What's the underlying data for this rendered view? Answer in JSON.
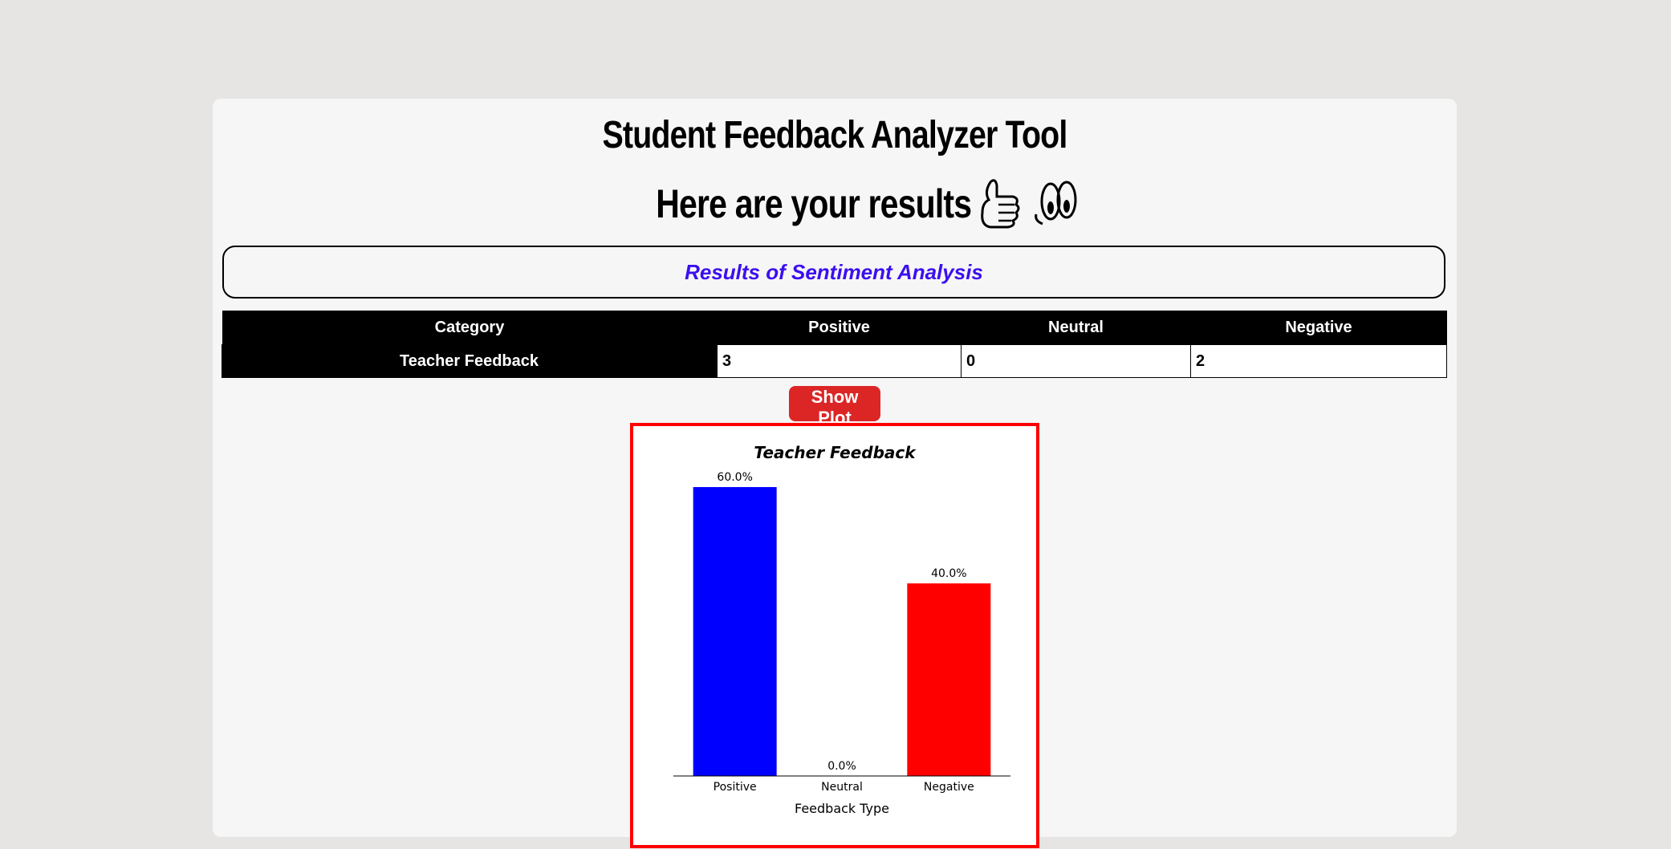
{
  "page": {
    "title": "Student Feedback Analyzer Tool",
    "subtitle": "Here are your results"
  },
  "results_heading": "Results of Sentiment Analysis",
  "table": {
    "headers": [
      "Category",
      "Positive",
      "Neutral",
      "Negative"
    ],
    "rows": [
      {
        "category": "Teacher Feedback",
        "positive": "3",
        "neutral": "0",
        "negative": "2"
      }
    ]
  },
  "buttons": {
    "show_plot": "Show Plot"
  },
  "chart_data": {
    "type": "bar",
    "title": "Teacher Feedback",
    "xlabel": "Feedback Type",
    "ylabel": "",
    "categories": [
      "Positive",
      "Neutral",
      "Negative"
    ],
    "values": [
      60.0,
      0.0,
      40.0
    ],
    "labels": [
      "60.0%",
      "0.0%",
      "40.0%"
    ],
    "colors": [
      "#0000ff",
      "#808080",
      "#ff0000"
    ],
    "ylim": [
      0,
      60
    ]
  },
  "icons": {
    "thumbs": "thumbs-up-icon",
    "eyes": "eyes-icon"
  }
}
